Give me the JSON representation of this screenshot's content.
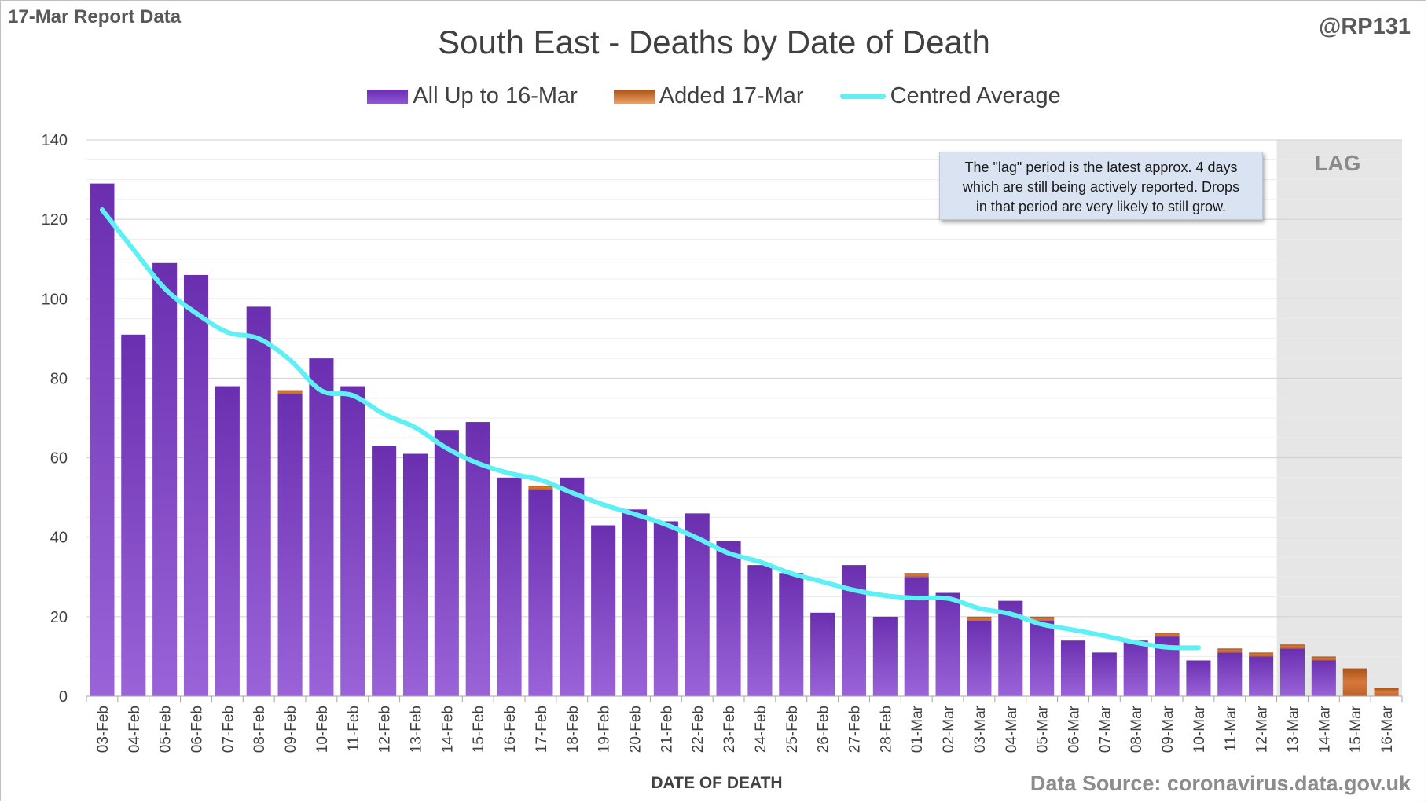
{
  "report_label": "17-Mar Report Data",
  "handle": "@RP131",
  "source": "Data Source: coronavirus.data.gov.uk",
  "annotation_lines": [
    "The \"lag\" period is the latest approx. 4 days",
    "which are still being actively reported.  Drops",
    "in that period are very likely to still grow."
  ],
  "lag_label": "LAG",
  "colors": {
    "base_bar_top": "#6a2fb0",
    "base_bar_bottom": "#9a63d8",
    "added_bar": "#d9783a",
    "average_line": "#5ef0f5",
    "lag_shade": "#e6e6e6",
    "grid": "#d9d9d9"
  },
  "chart_data": {
    "type": "bar",
    "title": "South East - Deaths by Date of Death",
    "xlabel": "DATE OF DEATH",
    "ylabel": "",
    "ylim": [
      0,
      140
    ],
    "yticks": [
      0,
      20,
      40,
      60,
      80,
      100,
      120,
      140
    ],
    "grid": true,
    "stacked": true,
    "legend_position": "top",
    "categories": [
      "03-Feb",
      "04-Feb",
      "05-Feb",
      "06-Feb",
      "07-Feb",
      "08-Feb",
      "09-Feb",
      "10-Feb",
      "11-Feb",
      "12-Feb",
      "13-Feb",
      "14-Feb",
      "15-Feb",
      "16-Feb",
      "17-Feb",
      "18-Feb",
      "19-Feb",
      "20-Feb",
      "21-Feb",
      "22-Feb",
      "23-Feb",
      "24-Feb",
      "25-Feb",
      "26-Feb",
      "27-Feb",
      "28-Feb",
      "01-Mar",
      "02-Mar",
      "03-Mar",
      "04-Mar",
      "05-Mar",
      "06-Mar",
      "07-Mar",
      "08-Mar",
      "09-Mar",
      "10-Mar",
      "11-Mar",
      "12-Mar",
      "13-Mar",
      "14-Mar",
      "15-Mar",
      "16-Mar"
    ],
    "series": [
      {
        "name": "All Up to 16-Mar",
        "values": [
          129,
          91,
          109,
          106,
          78,
          98,
          76,
          85,
          78,
          63,
          61,
          67,
          69,
          55,
          52,
          55,
          43,
          47,
          44,
          46,
          39,
          33,
          31,
          21,
          33,
          20,
          30,
          26,
          19,
          24,
          19,
          14,
          11,
          14,
          15,
          9,
          11,
          10,
          12,
          9,
          0,
          0
        ]
      },
      {
        "name": "Added 17-Mar",
        "values": [
          0,
          0,
          0,
          0,
          0,
          0,
          1,
          0,
          0,
          0,
          0,
          0,
          0,
          0,
          1,
          0,
          0,
          0,
          0,
          0,
          0,
          0,
          0,
          0,
          0,
          0,
          1,
          0,
          1,
          0,
          1,
          0,
          0,
          0,
          1,
          0,
          1,
          1,
          1,
          1,
          7,
          2
        ]
      },
      {
        "name": "Centred Average",
        "type": "line",
        "values": [
          122.4,
          112.4,
          102.6,
          96.4,
          91.6,
          90.0,
          84.6,
          76.9,
          75.7,
          71.0,
          67.6,
          62.4,
          58.6,
          56.1,
          54.4,
          51.2,
          48.2,
          45.8,
          43.2,
          39.8,
          36.0,
          33.8,
          30.9,
          28.8,
          26.7,
          25.3,
          24.7,
          24.6,
          22.1,
          20.7,
          18.1,
          16.7,
          15.2,
          13.5,
          12.3,
          12.2,
          null,
          null,
          null,
          null,
          null,
          null
        ]
      }
    ],
    "lag_categories": [
      "13-Mar",
      "14-Mar",
      "15-Mar",
      "16-Mar"
    ]
  }
}
